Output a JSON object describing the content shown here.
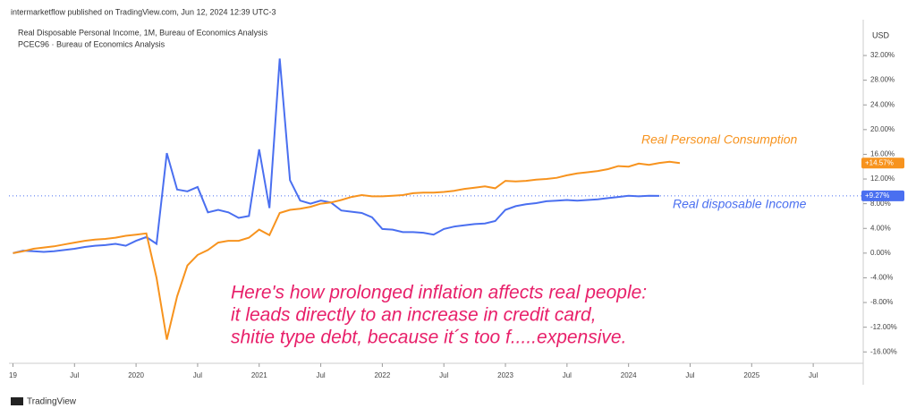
{
  "chart_data": {
    "type": "line",
    "header": "intermarketflow published on TradingView.com, Jun 12, 2024 12:39 UTC-3",
    "currency": "USD",
    "footer": "TradingView",
    "annotations": [
      {
        "text": "Real Personal Consumption",
        "color": "#f7931e"
      },
      {
        "text": "Real disposable Income",
        "color": "#4a6ff0"
      }
    ],
    "comment": [
      "Here's how prolonged inflation affects real people:",
      "it leads directly to an increase in credit card,",
      "shitie type debt, because it´s too f.....expensive."
    ],
    "comment_color": "#e8206a",
    "x": [
      "2019-01",
      "2019-02",
      "2019-03",
      "2019-04",
      "2019-05",
      "2019-06",
      "2019-07",
      "2019-08",
      "2019-09",
      "2019-10",
      "2019-11",
      "2019-12",
      "2020-01",
      "2020-02",
      "2020-03",
      "2020-04",
      "2020-05",
      "2020-06",
      "2020-07",
      "2020-08",
      "2020-09",
      "2020-10",
      "2020-11",
      "2020-12",
      "2021-01",
      "2021-02",
      "2021-03",
      "2021-04",
      "2021-05",
      "2021-06",
      "2021-07",
      "2021-08",
      "2021-09",
      "2021-10",
      "2021-11",
      "2021-12",
      "2022-01",
      "2022-02",
      "2022-03",
      "2022-04",
      "2022-05",
      "2022-06",
      "2022-07",
      "2022-08",
      "2022-09",
      "2022-10",
      "2022-11",
      "2022-12",
      "2023-01",
      "2023-02",
      "2023-03",
      "2023-04",
      "2023-05",
      "2023-06",
      "2023-07",
      "2023-08",
      "2023-09",
      "2023-10",
      "2023-11",
      "2023-12",
      "2024-01",
      "2024-02",
      "2024-03",
      "2024-04",
      "2024-05",
      "2024-06"
    ],
    "xlim": [
      "2018-12",
      "2025-11"
    ],
    "xticks": [
      {
        "value": "2019-01",
        "label": "19"
      },
      {
        "value": "2019-07",
        "label": "Jul"
      },
      {
        "value": "2020-01",
        "label": "2020"
      },
      {
        "value": "2020-07",
        "label": "Jul"
      },
      {
        "value": "2021-01",
        "label": "2021"
      },
      {
        "value": "2021-07",
        "label": "Jul"
      },
      {
        "value": "2022-01",
        "label": "2022"
      },
      {
        "value": "2022-07",
        "label": "Jul"
      },
      {
        "value": "2023-01",
        "label": "2023"
      },
      {
        "value": "2023-07",
        "label": "Jul"
      },
      {
        "value": "2024-01",
        "label": "2024"
      },
      {
        "value": "2024-07",
        "label": "Jul"
      },
      {
        "value": "2025-01",
        "label": "2025"
      },
      {
        "value": "2025-07",
        "label": "Jul"
      }
    ],
    "ylim": [
      -17.7,
      37.8
    ],
    "yticks": [
      {
        "value": -16,
        "label": "-16.00%"
      },
      {
        "value": -12,
        "label": "-12.00%"
      },
      {
        "value": -8,
        "label": "-8.00%"
      },
      {
        "value": -4,
        "label": "-4.00%"
      },
      {
        "value": 0,
        "label": "0.00%"
      },
      {
        "value": 4,
        "label": "4.00%"
      },
      {
        "value": 8,
        "label": "8.00%"
      },
      {
        "value": 12,
        "label": "12.00%"
      },
      {
        "value": 16,
        "label": "16.00%"
      },
      {
        "value": 20,
        "label": "20.00%"
      },
      {
        "value": 24,
        "label": "24.00%"
      },
      {
        "value": 28,
        "label": "28.00%"
      },
      {
        "value": 32,
        "label": "32.00%"
      }
    ],
    "series": [
      {
        "name": "Real Disposable Personal Income, 1M, Bureau of Economics Analysis",
        "color": "#4a6ff0",
        "values": [
          0,
          0.4,
          0.3,
          0.2,
          0.3,
          0.5,
          0.7,
          1.0,
          1.2,
          1.3,
          1.5,
          1.2,
          2.0,
          2.6,
          1.5,
          16.2,
          10.3,
          10.0,
          10.7,
          6.6,
          7.0,
          6.6,
          5.7,
          6.0,
          16.8,
          7.3,
          31.5,
          11.8,
          8.5,
          8.0,
          8.5,
          8.2,
          6.9,
          6.7,
          6.5,
          5.8,
          3.9,
          3.8,
          3.4,
          3.4,
          3.3,
          3.0,
          3.9,
          4.3,
          4.5,
          4.7,
          4.8,
          5.2,
          7.0,
          7.6,
          7.9,
          8.1,
          8.4,
          8.5,
          8.6,
          8.5,
          8.6,
          8.7,
          8.9,
          9.1,
          9.3,
          9.2,
          9.3,
          9.27,
          null,
          null
        ],
        "last_value": {
          "value": 9.27,
          "label": "+9.27%"
        }
      },
      {
        "name": "PCEC96 · Bureau of Economics Analysis",
        "color": "#f7931e",
        "values": [
          0,
          0.3,
          0.7,
          0.9,
          1.1,
          1.4,
          1.7,
          2.0,
          2.2,
          2.3,
          2.5,
          2.8,
          3.0,
          3.2,
          -4.0,
          -14.0,
          -7.0,
          -2.0,
          -0.3,
          0.5,
          1.7,
          2.0,
          2.0,
          2.5,
          3.8,
          2.9,
          6.5,
          7.0,
          7.2,
          7.5,
          8.0,
          8.2,
          8.6,
          9.1,
          9.4,
          9.2,
          9.2,
          9.3,
          9.4,
          9.7,
          9.8,
          9.8,
          9.9,
          10.1,
          10.4,
          10.6,
          10.8,
          10.5,
          11.7,
          11.6,
          11.7,
          11.9,
          12.0,
          12.2,
          12.6,
          12.9,
          13.1,
          13.3,
          13.6,
          14.1,
          14.0,
          14.5,
          14.3,
          14.6,
          14.8,
          14.57
        ],
        "last_value": {
          "value": 14.57,
          "label": "+14.57%"
        }
      }
    ]
  }
}
